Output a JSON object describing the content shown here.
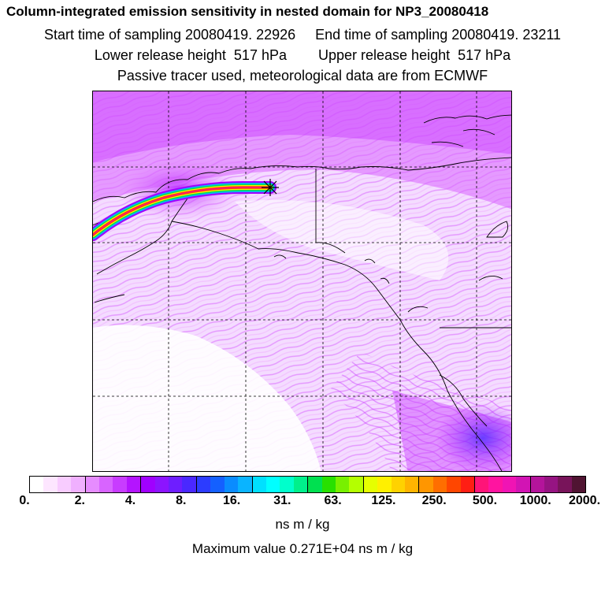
{
  "title": {
    "line1": "Column-integrated emission sensitivity in nested domain for NP3_20080418",
    "line2": "Start time of sampling 20080419. 22926     End time of sampling 20080419. 23211",
    "line3": "Lower release height  517 hPa        Upper release height  517 hPa",
    "line4": "Passive tracer used, meteorological data are from ECMWF"
  },
  "colorbar": {
    "tick_labels": [
      "0.",
      "2.",
      "4.",
      "8.",
      "16.",
      "31.",
      "63.",
      "125.",
      "250.",
      "500.",
      "1000.",
      "2000."
    ],
    "colors": [
      "#ffffff",
      "#fde6ff",
      "#f8ccff",
      "#f0b0ff",
      "#e68cff",
      "#d864ff",
      "#c83cff",
      "#b414ff",
      "#a000ff",
      "#8c14ff",
      "#6e1eff",
      "#4a28ff",
      "#2c3cff",
      "#1460ff",
      "#0a8cff",
      "#0ab4ff",
      "#00e0ff",
      "#00ffff",
      "#00ffcc",
      "#00f08c",
      "#00e050",
      "#28e000",
      "#78f000",
      "#b4ff00",
      "#e6ff00",
      "#fff000",
      "#ffd200",
      "#ffb400",
      "#ff9600",
      "#ff6e00",
      "#ff4600",
      "#ff1e14",
      "#ff1478",
      "#ff14a0",
      "#f014b4",
      "#d214b4",
      "#b4149b",
      "#961482",
      "#78145a",
      "#501432"
    ]
  },
  "unit_label": "ns m / kg",
  "max_value_label": "Maximum value  0.271E+04 ns m / kg"
}
